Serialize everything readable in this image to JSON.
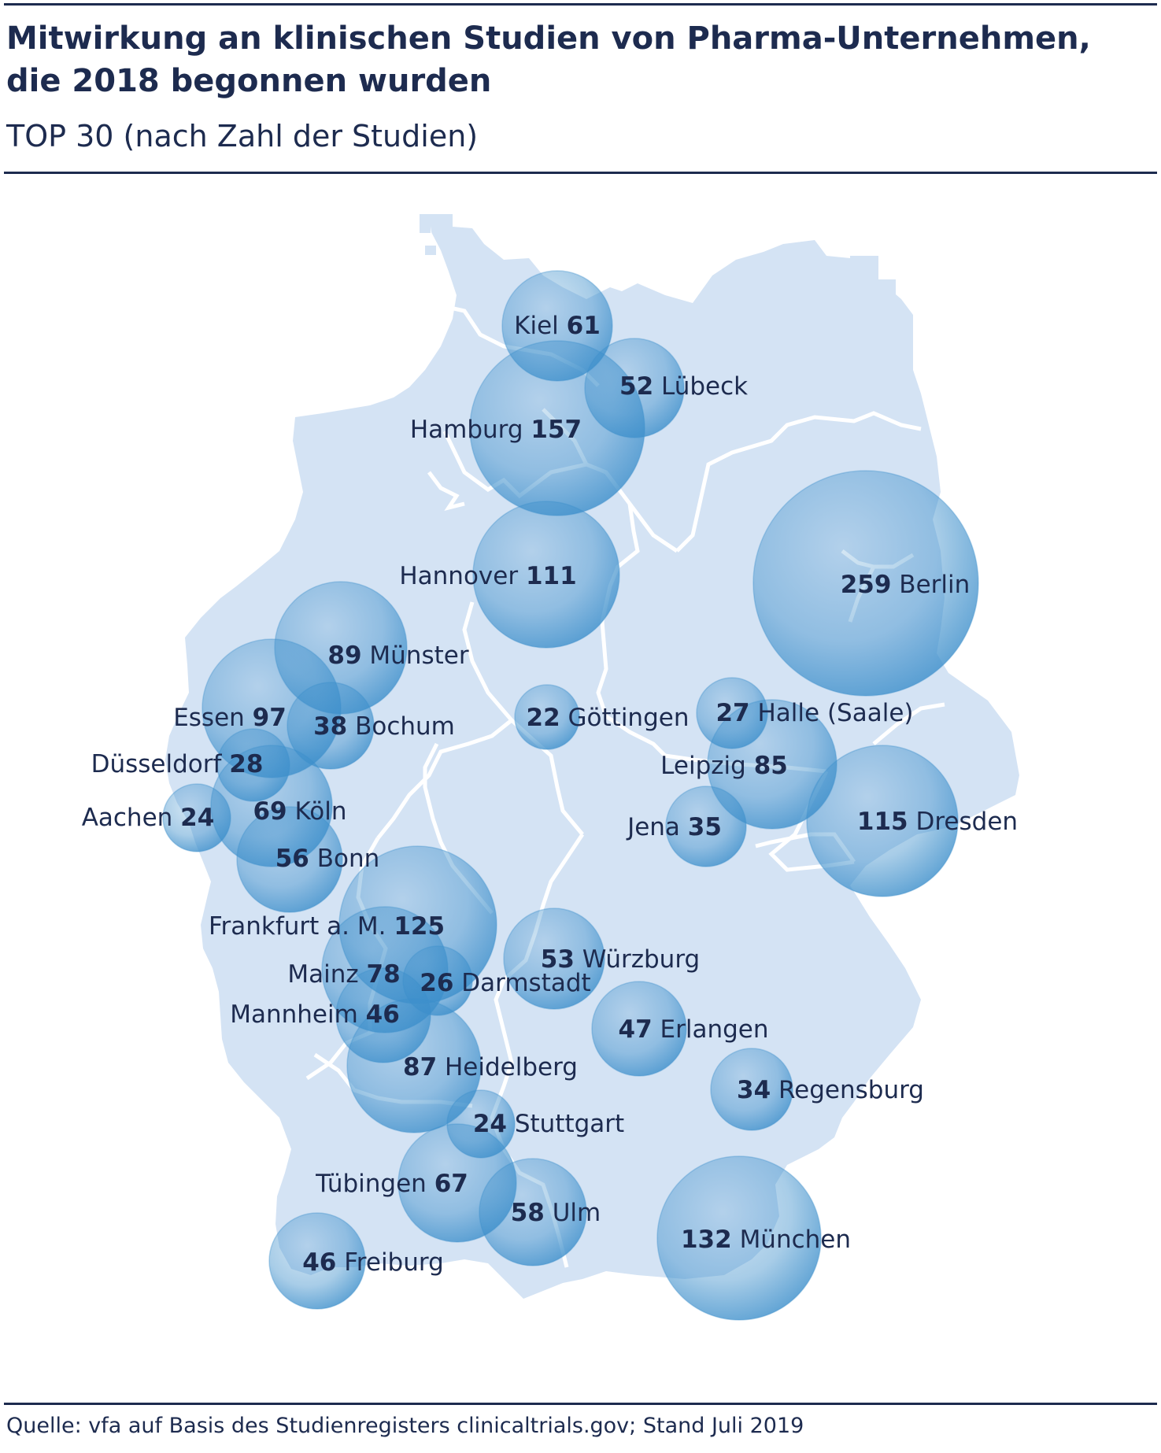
{
  "title": "Mitwirkung an klinischen Studien von Pharma-Unternehmen, die 2018 begonnen wurden",
  "subtitle": "TOP 30 (nach Zahl der Studien)",
  "source": "Quelle: vfa auf Basis des Studienregisters clinicaltrials.gov; Stand Juli 2019",
  "colors": {
    "text": "#1d2b4f",
    "map_fill": "#d4e3f4",
    "bubble": "#3d8fcb",
    "bubble_light": "#b9dcf1",
    "border": "#ffffff"
  },
  "cities": [
    {
      "name": "Kiel",
      "value": 61,
      "pattern": "name-first"
    },
    {
      "name": "Lübeck",
      "value": 52,
      "pattern": "value-first"
    },
    {
      "name": "Hamburg",
      "value": 157,
      "pattern": "name-first"
    },
    {
      "name": "Hannover",
      "value": 111,
      "pattern": "name-first"
    },
    {
      "name": "Berlin",
      "value": 259,
      "pattern": "value-first"
    },
    {
      "name": "Münster",
      "value": 89,
      "pattern": "value-first"
    },
    {
      "name": "Essen",
      "value": 97,
      "pattern": "name-first"
    },
    {
      "name": "Bochum",
      "value": 38,
      "pattern": "value-first"
    },
    {
      "name": "Göttingen",
      "value": 22,
      "pattern": "value-first"
    },
    {
      "name": "Halle (Saale)",
      "value": 27,
      "pattern": "value-first"
    },
    {
      "name": "Düsseldorf",
      "value": 28,
      "pattern": "name-first"
    },
    {
      "name": "Leipzig",
      "value": 85,
      "pattern": "name-first"
    },
    {
      "name": "Aachen",
      "value": 24,
      "pattern": "name-first"
    },
    {
      "name": "Köln",
      "value": 69,
      "pattern": "value-first"
    },
    {
      "name": "Jena",
      "value": 35,
      "pattern": "name-first"
    },
    {
      "name": "Dresden",
      "value": 115,
      "pattern": "value-first"
    },
    {
      "name": "Bonn",
      "value": 56,
      "pattern": "value-first"
    },
    {
      "name": "Frankfurt a. M.",
      "value": 125,
      "pattern": "name-first"
    },
    {
      "name": "Würzburg",
      "value": 53,
      "pattern": "value-first"
    },
    {
      "name": "Mainz",
      "value": 78,
      "pattern": "name-first"
    },
    {
      "name": "Darmstadt",
      "value": 26,
      "pattern": "value-first"
    },
    {
      "name": "Mannheim",
      "value": 46,
      "pattern": "name-first"
    },
    {
      "name": "Erlangen",
      "value": 47,
      "pattern": "value-first"
    },
    {
      "name": "Heidelberg",
      "value": 87,
      "pattern": "value-first"
    },
    {
      "name": "Regensburg",
      "value": 34,
      "pattern": "value-first"
    },
    {
      "name": "Stuttgart",
      "value": 24,
      "pattern": "value-first"
    },
    {
      "name": "Tübingen",
      "value": 67,
      "pattern": "name-first"
    },
    {
      "name": "Ulm",
      "value": 58,
      "pattern": "value-first"
    },
    {
      "name": "München",
      "value": 132,
      "pattern": "value-first"
    },
    {
      "name": "Freiburg",
      "value": 46,
      "pattern": "value-first"
    }
  ]
}
